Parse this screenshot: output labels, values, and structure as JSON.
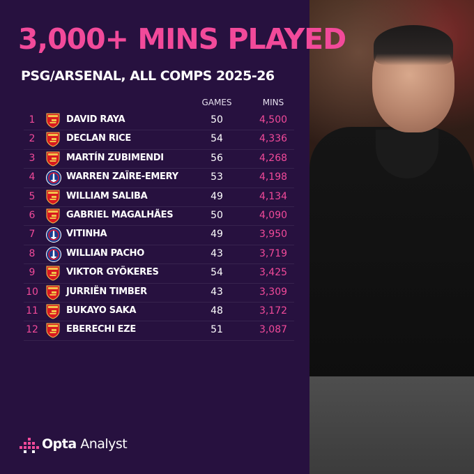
{
  "title": "3,000+ MINS PLAYED",
  "subtitle": "PSG/ARSENAL, ALL COMPS 2025-26",
  "columns": {
    "games": "GAMES",
    "mins": "MINS"
  },
  "rows": [
    {
      "rank": "1",
      "club": "arsenal",
      "name": "DAVID RAYA",
      "games": "50",
      "mins": "4,500"
    },
    {
      "rank": "2",
      "club": "arsenal",
      "name": "DECLAN RICE",
      "games": "54",
      "mins": "4,336"
    },
    {
      "rank": "3",
      "club": "arsenal",
      "name": "MARTÍN ZUBIMENDI",
      "games": "56",
      "mins": "4,268"
    },
    {
      "rank": "4",
      "club": "psg",
      "name": "WARREN ZAÏRE-EMERY",
      "games": "53",
      "mins": "4,198"
    },
    {
      "rank": "5",
      "club": "arsenal",
      "name": "WILLIAM SALIBA",
      "games": "49",
      "mins": "4,134"
    },
    {
      "rank": "6",
      "club": "arsenal",
      "name": "GABRIEL MAGALHÃES",
      "games": "50",
      "mins": "4,090"
    },
    {
      "rank": "7",
      "club": "psg",
      "name": "VITINHA",
      "games": "49",
      "mins": "3,950"
    },
    {
      "rank": "8",
      "club": "psg",
      "name": "WILLIAN PACHO",
      "games": "43",
      "mins": "3,719"
    },
    {
      "rank": "9",
      "club": "arsenal",
      "name": "VIKTOR GYÖKERES",
      "games": "54",
      "mins": "3,425"
    },
    {
      "rank": "10",
      "club": "arsenal",
      "name": "JURRIËN TIMBER",
      "games": "43",
      "mins": "3,309"
    },
    {
      "rank": "11",
      "club": "arsenal",
      "name": "BUKAYO SAKA",
      "games": "48",
      "mins": "3,172"
    },
    {
      "rank": "12",
      "club": "arsenal",
      "name": "EBERECHI EZE",
      "games": "51",
      "mins": "3,087"
    }
  ],
  "brand": {
    "name_bold": "Opta",
    "name_rest": " Analyst"
  },
  "colors": {
    "background": "#27113f",
    "accent": "#f24a9a",
    "text": "#ffffff"
  },
  "icons": {
    "arsenal": "arsenal-crest-icon",
    "psg": "psg-crest-icon",
    "brand": "opta-analyst-logo-icon"
  }
}
